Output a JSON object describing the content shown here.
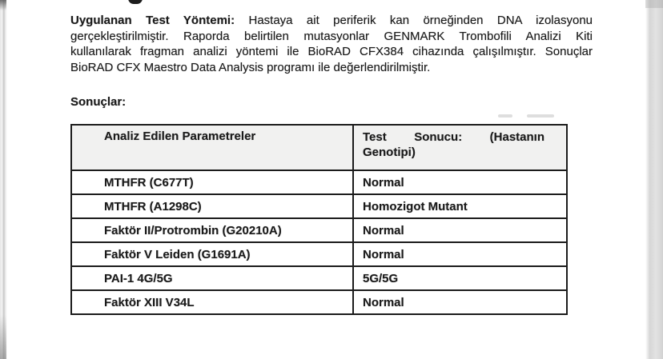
{
  "page": {
    "background": "#ffffff",
    "text_color": "#1b1b1b"
  },
  "method_paragraph": {
    "label": "Uygulanan Test Yöntemi:",
    "line1_rest": "Hastaya ait periferik kan örneğinden DNA izolasyonu",
    "line2": "gerçekleştirilmiştir. Raporda belirtilen mutasyonlar GENMARK Trombofili Analizi Kiti",
    "line3": "kullanılarak fragman analizi yöntemi ile BioRAD CFX384 cihazında çalışılmıştır. Sonuçlar",
    "line4": "BioRAD CFX Maestro Data Analysis programı ile değerlendirilmiştir.",
    "full_text": "Uygulanan Test Yöntemi: Hastaya ait periferik kan örneğinden DNA izolasyonu gerçekleştirilmiştir. Raporda belirtilen mutasyonlar GENMARK Trombofili Analizi Kiti kullanılarak fragman analizi yöntemi ile BioRAD CFX384 cihazında çalışılmıştır. Sonuçlar BioRAD CFX Maestro Data Analysis programı ile değerlendirilmiştir."
  },
  "results_heading": "Sonuçlar:",
  "results_table": {
    "border_color": "#1b1b1b",
    "header_bg": "#f1f1f0",
    "columns": [
      "Analiz Edilen Parametreler",
      "Test Sonucu: (Hastanın Genotipi)"
    ],
    "rows": [
      {
        "parameter": "MTHFR (C677T)",
        "result": "Normal"
      },
      {
        "parameter": "MTHFR (A1298C)",
        "result": "Homozigot Mutant"
      },
      {
        "parameter": "Faktör II/Protrombin (G20210A)",
        "result": "Normal"
      },
      {
        "parameter": "Faktör V Leiden (G1691A)",
        "result": "Normal"
      },
      {
        "parameter": "PAI-1 4G/5G",
        "result": "5G/5G"
      },
      {
        "parameter": "Faktör XIII V34L",
        "result": "Normal"
      }
    ]
  }
}
